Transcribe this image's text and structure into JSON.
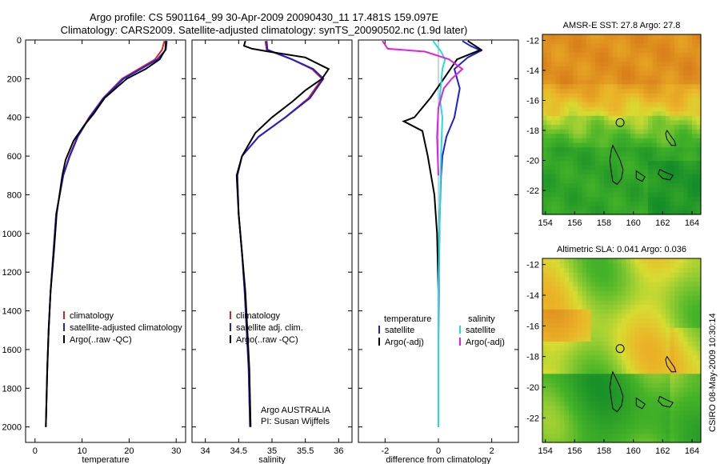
{
  "header": {
    "line1": "Argo profile: CS 5901164_99 30-Apr-2009 20090430_11 17.481S 159.097E",
    "line2": "Climatology: CARS2009. Satellite-adjusted climatology: synTS_20090502.nc (1.9d later)"
  },
  "side_label": "CSIRO 08-May-2009 10:30:14",
  "colors": {
    "climatology": "#e0201c",
    "satellite": "#1e1ed8",
    "argo": "#000000",
    "cyan": "#22dde0",
    "magenta": "#e020e0"
  },
  "chart_data": [
    {
      "type": "line",
      "id": "temperature",
      "xlabel": "temperature",
      "ylabel": "",
      "xlim": [
        -2,
        32
      ],
      "ylim": [
        2080,
        0
      ],
      "xticks": [
        0,
        10,
        20,
        30
      ],
      "yticks": [
        0,
        200,
        400,
        600,
        800,
        1000,
        1200,
        1400,
        1600,
        1800,
        2000
      ],
      "legend": [
        "climatology",
        "satellite-adjusted climatology",
        "Argo(..raw -QC)"
      ],
      "series": [
        {
          "name": "climatology",
          "color": "#e0201c",
          "x": [
            27.5,
            27.0,
            25.5,
            22.0,
            18.5,
            14.5,
            11.5,
            9.0,
            7.3,
            6.0,
            4.5,
            3.9,
            3.3,
            2.9,
            2.6,
            2.45,
            2.3
          ],
          "y": [
            5,
            50,
            100,
            150,
            200,
            300,
            400,
            500,
            600,
            700,
            900,
            1100,
            1300,
            1500,
            1700,
            1850,
            2000
          ]
        },
        {
          "name": "satellite-adjusted climatology",
          "color": "#1e1ed8",
          "x": [
            28.0,
            27.8,
            26.0,
            22.5,
            18.8,
            14.6,
            11.6,
            9.1,
            7.4,
            6.0,
            4.5,
            3.9,
            3.3,
            2.9,
            2.6,
            2.45,
            2.3
          ],
          "y": [
            5,
            50,
            100,
            150,
            200,
            300,
            400,
            500,
            600,
            700,
            900,
            1100,
            1300,
            1500,
            1700,
            1850,
            2000
          ]
        },
        {
          "name": "Argo(..raw -QC)",
          "color": "#000000",
          "x": [
            27.8,
            27.7,
            26.5,
            23.5,
            19.5,
            14.8,
            12.5,
            10.5,
            8.2,
            6.5,
            5.8,
            4.6,
            4.0,
            3.3,
            2.9,
            2.6,
            2.45,
            2.3
          ],
          "y": [
            5,
            50,
            100,
            150,
            200,
            300,
            380,
            440,
            520,
            620,
            700,
            900,
            1100,
            1300,
            1500,
            1700,
            1850,
            2000
          ]
        }
      ]
    },
    {
      "type": "line",
      "id": "salinity",
      "xlabel": "salinity",
      "ylabel": "",
      "xlim": [
        33.8,
        36.2
      ],
      "ylim": [
        2080,
        0
      ],
      "xticks": [
        34,
        34.5,
        35,
        35.5,
        36
      ],
      "legend": [
        "climatology",
        "satellite adj. clim.",
        "Argo(..raw -QC)"
      ],
      "annotations": [
        "Argo AUSTRALIA",
        "PI: Susan Wijffels"
      ],
      "series": [
        {
          "name": "climatology",
          "color": "#e0201c",
          "x": [
            34.9,
            34.92,
            35.3,
            35.6,
            35.75,
            35.55,
            35.2,
            34.8,
            34.55,
            34.48,
            34.5,
            34.55,
            34.59,
            34.62,
            34.65,
            34.67
          ],
          "y": [
            5,
            50,
            100,
            150,
            200,
            300,
            400,
            500,
            600,
            700,
            900,
            1100,
            1300,
            1500,
            1700,
            2000
          ]
        },
        {
          "name": "satellite adj. clim.",
          "color": "#1e1ed8",
          "x": [
            34.92,
            34.93,
            35.3,
            35.62,
            35.77,
            35.57,
            35.2,
            34.8,
            34.55,
            34.48,
            34.5,
            34.55,
            34.59,
            34.62,
            34.65,
            34.67
          ],
          "y": [
            5,
            50,
            100,
            150,
            200,
            300,
            400,
            500,
            600,
            700,
            900,
            1100,
            1300,
            1500,
            1700,
            2000
          ]
        },
        {
          "name": "Argo(..raw -QC)",
          "color": "#000000",
          "x": [
            34.6,
            34.58,
            34.7,
            34.95,
            35.5,
            35.85,
            35.75,
            35.5,
            35.3,
            35.0,
            34.75,
            34.55,
            34.47,
            34.5,
            34.55,
            34.6,
            34.63,
            34.66,
            34.68
          ],
          "y": [
            5,
            30,
            45,
            60,
            90,
            150,
            200,
            260,
            320,
            400,
            480,
            600,
            700,
            900,
            1100,
            1300,
            1500,
            1700,
            2000
          ]
        }
      ]
    },
    {
      "type": "line",
      "id": "difference",
      "xlabel": "difference from climatology",
      "ylabel": "",
      "xlim": [
        -3,
        3
      ],
      "ylim": [
        2080,
        0
      ],
      "xticks": [
        -2,
        0,
        2
      ],
      "legend_left_title": "temperature",
      "legend_right_title": "salinity",
      "legend_left": [
        "satellite",
        "Argo(-adj)"
      ],
      "legend_right": [
        "satellite",
        "Argo(-adj)"
      ],
      "series": [
        {
          "name": "temperature satellite",
          "color": "#1e1ed8",
          "x": [
            0.9,
            1.2,
            1.6,
            1.1,
            0.6,
            0.8,
            0.6,
            0.3,
            0.15,
            0.1,
            0.05,
            0.02,
            0.0,
            0.0
          ],
          "y": [
            5,
            30,
            55,
            90,
            150,
            250,
            400,
            500,
            600,
            700,
            900,
            1200,
            1600,
            2000
          ]
        },
        {
          "name": "temperature Argo(-adj)",
          "color": "#000000",
          "x": [
            1.1,
            1.6,
            0.7,
            0.2,
            -0.3,
            -0.9,
            -1.3,
            -0.6,
            -0.4,
            -0.15,
            -0.05,
            0.0,
            0.0
          ],
          "y": [
            5,
            50,
            100,
            200,
            300,
            400,
            420,
            470,
            600,
            800,
            1000,
            1300,
            1600
          ]
        },
        {
          "name": "salinity satellite",
          "color": "#22dde0",
          "x": [
            -0.2,
            0.1,
            0.25,
            0.15,
            0.05,
            0.15,
            0.1,
            0.05,
            0.0,
            0.0
          ],
          "y": [
            5,
            60,
            100,
            150,
            300,
            400,
            600,
            900,
            1300,
            2000
          ]
        },
        {
          "name": "salinity Argo(-adj)",
          "color": "#e020e0",
          "x": [
            -2.1,
            -1.9,
            -0.5,
            0.4,
            0.9,
            0.5,
            0.2,
            0.0,
            -0.05,
            0.0
          ],
          "y": [
            5,
            45,
            60,
            100,
            150,
            200,
            250,
            350,
            500,
            700
          ]
        }
      ]
    },
    {
      "type": "heatmap",
      "id": "sst-map",
      "title": "AMSR-E SST: 27.8 Argo: 27.8",
      "xlim": [
        153.8,
        164.6
      ],
      "ylim": [
        -23.6,
        -11.6
      ],
      "xticks": [
        154,
        156,
        158,
        160,
        162,
        164
      ],
      "yticks": [
        -12,
        -14,
        -16,
        -18,
        -20,
        -22
      ],
      "marker": {
        "lon": 159.097,
        "lat": -17.481
      }
    },
    {
      "type": "heatmap",
      "id": "sla-map",
      "title": "Altimetric SLA: 0.041 Argo: 0.036",
      "xlim": [
        153.8,
        164.6
      ],
      "ylim": [
        -23.6,
        -11.6
      ],
      "xticks": [
        154,
        156,
        158,
        160,
        162,
        164
      ],
      "yticks": [
        -12,
        -14,
        -16,
        -18,
        -20,
        -22
      ],
      "marker": {
        "lon": 159.097,
        "lat": -17.481
      }
    }
  ]
}
